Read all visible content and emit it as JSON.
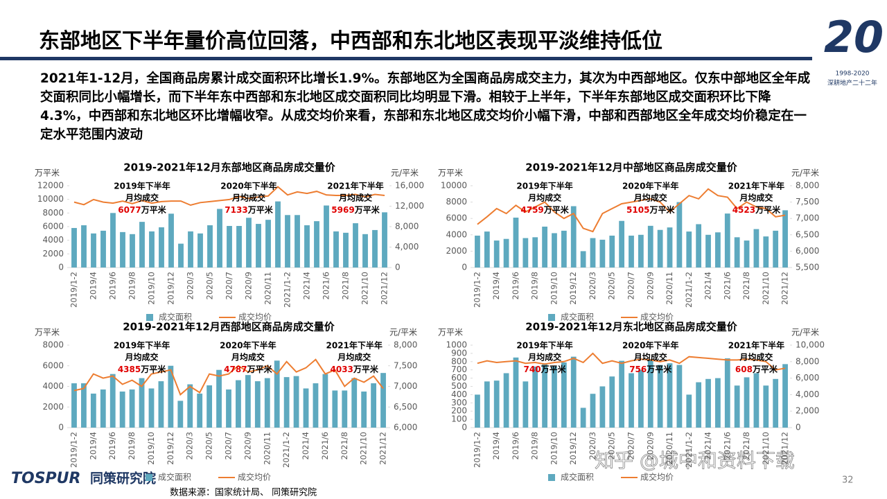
{
  "header": {
    "title": "东部地区下半年量价高位回落，中西部和东北地区表现平淡维持低位"
  },
  "summary": "2021年1-12月，全国商品房累计成交面积环比增长1.9%。东部地区为全国商品房成交主力，其次为中西部地区。仅东中部地区全年成交面积同比小幅增长，而下半年东中西部和东北地区成交面积同比均明显下滑。相较于上半年，下半年东部地区成交面积环比下降4.3%，中西部和东北地区环比增幅收窄。从成交均价来看，东部和东北地区成交均价小幅下滑，中部和西部地区全年成交均价稳定在一定水平范围内波动",
  "source": "数据来源：国家统计局、 同策研究院",
  "logo": {
    "brand": "TOSPUR",
    "name": "同策研究院"
  },
  "corner_logo": {
    "mark": "20",
    "years": "1998-2020",
    "slogan": "深耕地产二十二年"
  },
  "page_number": 32,
  "watermark": "知乎 @城中和资料下载",
  "chart_data": [
    {
      "type": "bar-line",
      "title": "2019-2021年12月东部地区商品房成交量价",
      "y_label": "万平米",
      "y2_label": "元/平米",
      "categories": [
        "2019/1-2",
        null,
        "2019/4",
        null,
        "2019/6",
        null,
        "2019/8",
        null,
        "2019/10",
        null,
        "2019/12",
        null,
        "2020/3",
        null,
        "2020/5",
        null,
        "2020/7",
        null,
        "2020/9",
        null,
        "2020/11",
        null,
        "2021/1-2",
        null,
        "2021/4",
        null,
        "2021/6",
        null,
        "2021/8",
        null,
        "2021/10",
        null,
        "2021/12"
      ],
      "series": [
        {
          "name": "成交面积",
          "type": "bar",
          "color": "#5ea9bf",
          "values": [
            5800,
            6200,
            5000,
            5400,
            8000,
            5200,
            4900,
            6700,
            5300,
            5900,
            7900,
            3500,
            5300,
            5000,
            6200,
            8600,
            6100,
            6100,
            7300,
            6400,
            7000,
            9700,
            7700,
            7700,
            6200,
            6800,
            9100,
            5300,
            5100,
            6500,
            4900,
            5500,
            8100
          ]
        },
        {
          "name": "成交均价",
          "type": "line",
          "axis": "y2",
          "color": "#ed7d31",
          "values": [
            12800,
            12300,
            13300,
            12800,
            12600,
            13000,
            12500,
            13100,
            12600,
            12900,
            13000,
            13000,
            12200,
            12700,
            12900,
            13100,
            13300,
            13900,
            13500,
            13800,
            14000,
            15800,
            14200,
            14800,
            14500,
            14900,
            14200,
            14100,
            14100,
            14300,
            13800,
            14300,
            14100
          ]
        }
      ],
      "ylim": [
        0,
        12000
      ],
      "yticks": [
        0,
        2000,
        4000,
        6000,
        8000,
        10000,
        12000
      ],
      "y2lim": [
        0,
        16000
      ],
      "y2ticks": [
        0,
        {
          "value": 4000,
          "label": "4,000"
        },
        {
          "value": 8000,
          "label": "8,000"
        },
        {
          "value": 12000,
          "label": "12,000"
        },
        {
          "value": 16000,
          "label": "16,000"
        }
      ],
      "annotations": [
        {
          "lines": [
            "2019年下半年",
            "月均成交"
          ],
          "value": 6077,
          "unit": "万平米"
        },
        {
          "lines": [
            "2020年下半年",
            "月均成交"
          ],
          "value": 7133,
          "unit": "万平米"
        },
        {
          "lines": [
            "2021年下半年",
            "月均成交"
          ],
          "value": 5969,
          "unit": "万平米"
        }
      ]
    },
    {
      "type": "bar-line",
      "title": "2019-2021年12月中部地区商品房成交量价",
      "y_label": "万平米",
      "y2_label": "元/平米",
      "categories": [
        "2019/1-2",
        null,
        "2019/4",
        null,
        "2019/6",
        null,
        "2019/8",
        null,
        "2019/10",
        null,
        "2019/12",
        null,
        "2020/3",
        null,
        "2020/5",
        null,
        "2020/7",
        null,
        "2020/9",
        null,
        "2020/11",
        null,
        "2021/1-2",
        null,
        "2021/4",
        null,
        "2021/6",
        null,
        "2021/8",
        null,
        "2021/10",
        null,
        "2021/12"
      ],
      "series": [
        {
          "name": "成交面积",
          "type": "bar",
          "color": "#5ea9bf",
          "values": [
            3900,
            4400,
            3300,
            3500,
            6100,
            3600,
            3700,
            5000,
            4200,
            4500,
            7500,
            2000,
            3600,
            3400,
            3900,
            5700,
            3900,
            4000,
            5100,
            4600,
            4900,
            8000,
            4400,
            5300,
            4000,
            4300,
            6600,
            3700,
            3300,
            4700,
            3800,
            4500,
            7000
          ]
        },
        {
          "name": "成交均价",
          "type": "line",
          "axis": "y2",
          "color": "#ed7d31",
          "values": [
            6820,
            7050,
            7300,
            7150,
            7400,
            7200,
            7350,
            7500,
            7200,
            7000,
            7150,
            6700,
            6600,
            7150,
            7300,
            7450,
            7500,
            7550,
            7600,
            7500,
            7200,
            7450,
            7700,
            7600,
            7900,
            7700,
            7650,
            7300,
            7500,
            7350,
            7300,
            7050,
            7100
          ]
        }
      ],
      "ylim": [
        0,
        10000
      ],
      "yticks": [
        0,
        2000,
        4000,
        6000,
        8000,
        10000
      ],
      "y2lim": [
        5500,
        8000
      ],
      "y2ticks": [
        {
          "value": 5500,
          "label": "5,500"
        },
        {
          "value": 6000,
          "label": "6,000"
        },
        {
          "value": 6500,
          "label": "6,500"
        },
        {
          "value": 7000,
          "label": "7,000"
        },
        {
          "value": 7500,
          "label": "7,500"
        },
        {
          "value": 8000,
          "label": "8,000"
        }
      ],
      "annotations": [
        {
          "lines": [
            "2019年下半年",
            "月均成交"
          ],
          "value": 4759,
          "unit": "万平米"
        },
        {
          "lines": [
            "2020年下半年",
            "月均成交"
          ],
          "value": 5105,
          "unit": "万平米"
        },
        {
          "lines": [
            "2021年下半年",
            "月均成交"
          ],
          "value": 4523,
          "unit": "万平米"
        }
      ]
    },
    {
      "type": "bar-line",
      "title": "2019-2021年12月西部地区商品房成交量价",
      "y_label": "万平米",
      "y2_label": "元/平米",
      "categories": [
        "2019/1-2",
        null,
        "2019/4",
        null,
        "2019/6",
        null,
        "2019/8",
        null,
        "2019/10",
        null,
        "2019/12",
        null,
        "2020/3",
        null,
        "2020/5",
        null,
        "2020/7",
        null,
        "2020/9",
        null,
        "2020/11",
        null,
        "2021/1-2",
        null,
        "2021/4",
        null,
        "2021/6",
        null,
        "2021/8",
        null,
        "2021/10",
        null,
        "2021/12"
      ],
      "series": [
        {
          "name": "成交面积",
          "type": "bar",
          "color": "#5ea9bf",
          "values": [
            4300,
            4300,
            3300,
            3700,
            5200,
            3500,
            3700,
            4800,
            3800,
            4500,
            6000,
            2600,
            4200,
            3300,
            4100,
            5600,
            3700,
            4600,
            5100,
            4500,
            4800,
            6500,
            4900,
            5000,
            3800,
            4300,
            5200,
            3600,
            3600,
            4800,
            3500,
            4300,
            5300
          ]
        },
        {
          "name": "成交均价",
          "type": "line",
          "axis": "y2",
          "color": "#ed7d31",
          "values": [
            6900,
            6950,
            7300,
            7200,
            7250,
            7050,
            7150,
            7000,
            7300,
            7350,
            7400,
            6800,
            7000,
            6850,
            7300,
            7250,
            7300,
            7500,
            7350,
            7400,
            7500,
            7300,
            7600,
            7350,
            7450,
            7650,
            7300,
            7400,
            7000,
            7200,
            7100,
            7250,
            6950
          ]
        }
      ],
      "ylim": [
        0,
        8000
      ],
      "yticks": [
        0,
        2000,
        4000,
        6000,
        8000
      ],
      "y2lim": [
        6000,
        8000
      ],
      "y2ticks": [
        {
          "value": 6000,
          "label": "6,000"
        },
        {
          "value": 6500,
          "label": "6,500"
        },
        {
          "value": 7000,
          "label": "7,000"
        },
        {
          "value": 7500,
          "label": "7,500"
        },
        {
          "value": 8000,
          "label": "8,000"
        }
      ],
      "annotations": [
        {
          "lines": [
            "2019年下半年",
            "月均成交"
          ],
          "value": 4385,
          "unit": "万平米"
        },
        {
          "lines": [
            "2020年下半年",
            "月均成交"
          ],
          "value": 4787,
          "unit": "万平米"
        },
        {
          "lines": [
            "2021年下半年",
            "月均成交"
          ],
          "value": 4033,
          "unit": "万平米"
        }
      ]
    },
    {
      "type": "bar-line",
      "title": "2019-2021年12月东北地区商品房成交量价",
      "y_label": "万平米",
      "y2_label": "元/平米",
      "categories": [
        "2019/1-2",
        null,
        "2019/4",
        null,
        "2019/6",
        null,
        "2019/8",
        null,
        "2019/10",
        null,
        "2019/12",
        null,
        "2020/3",
        null,
        "2020/5",
        null,
        "2020/7",
        null,
        "2020/9",
        null,
        "2020/11",
        null,
        "2021/1-2",
        null,
        "2021/4",
        null,
        "2021/6",
        null,
        "2021/8",
        null,
        "2021/10",
        null,
        "2021/12"
      ],
      "series": [
        {
          "name": "成交面积",
          "type": "bar",
          "color": "#5ea9bf",
          "values": [
            400,
            560,
            570,
            660,
            850,
            560,
            740,
            780,
            740,
            790,
            860,
            240,
            410,
            500,
            620,
            810,
            660,
            700,
            830,
            760,
            780,
            760,
            400,
            550,
            590,
            600,
            840,
            510,
            610,
            660,
            510,
            590,
            770
          ]
        },
        {
          "name": "成交均价",
          "type": "line",
          "axis": "y2",
          "color": "#ed7d31",
          "values": [
            7800,
            8100,
            7900,
            8000,
            8100,
            7800,
            7900,
            7700,
            7900,
            8000,
            8400,
            7900,
            9000,
            7800,
            8100,
            7800,
            8100,
            8300,
            8200,
            8000,
            8200,
            7800,
            8600,
            8500,
            8400,
            8300,
            8200,
            8200,
            8300,
            8200,
            8000,
            7000,
            7200
          ]
        }
      ],
      "ylim": [
        0,
        1000
      ],
      "yticks": [
        0,
        100,
        200,
        300,
        400,
        500,
        600,
        700,
        800,
        900,
        1000
      ],
      "y2lim": [
        0,
        10000
      ],
      "y2ticks": [
        0,
        {
          "value": 2000,
          "label": "2,000"
        },
        {
          "value": 4000,
          "label": "4,000"
        },
        {
          "value": 6000,
          "label": "6,000"
        },
        {
          "value": 8000,
          "label": "8,000"
        },
        {
          "value": 10000,
          "label": "10,000"
        }
      ],
      "annotations": [
        {
          "lines": [
            "2019年下半年",
            "月均成交"
          ],
          "value": 740,
          "unit": "万平米"
        },
        {
          "lines": [
            "2020年下半年",
            "月均成交"
          ],
          "value": 756,
          "unit": "万平米"
        },
        {
          "lines": [
            "2021年下半年",
            "月均成交"
          ],
          "value": 608,
          "unit": "万平米"
        }
      ]
    }
  ]
}
